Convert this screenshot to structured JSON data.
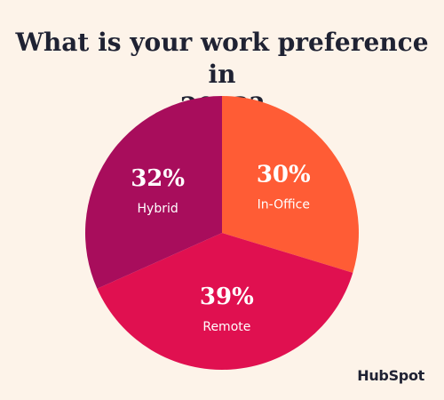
{
  "title_lines": [
    "What is your work preference in",
    "2023?"
  ],
  "chart_data": {
    "type": "pie",
    "title": "What is your work preference in 2023?",
    "slices": [
      {
        "label": "In-Office",
        "value": 30,
        "value_label": "30%",
        "color": "#ff5c35"
      },
      {
        "label": "Remote",
        "value": 39,
        "value_label": "39%",
        "color": "#e01050"
      },
      {
        "label": "Hybrid",
        "value": 32,
        "value_label": "32%",
        "color": "#a80d5c"
      }
    ],
    "start": "12 o'clock, clockwise"
  },
  "brand": {
    "logo_text": "HubSpot"
  }
}
